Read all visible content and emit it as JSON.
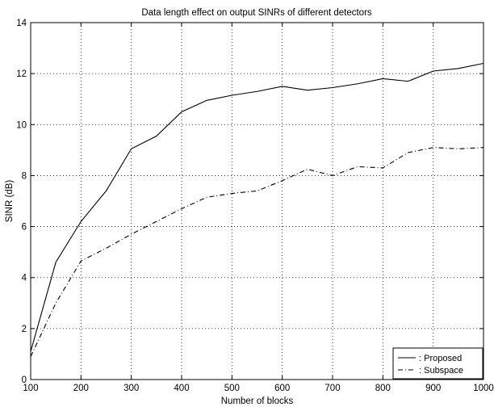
{
  "chart_data": {
    "type": "line",
    "title": "Data length effect on output SINRs of different detectors",
    "xlabel": "Number of blocks",
    "ylabel": "SINR (dB)",
    "xlim": [
      100,
      1000
    ],
    "ylim": [
      0,
      14
    ],
    "xticks": [
      100,
      200,
      300,
      400,
      500,
      600,
      700,
      800,
      900,
      1000
    ],
    "yticks": [
      0,
      2,
      4,
      6,
      8,
      10,
      12,
      14
    ],
    "grid": true,
    "legend_position": "bottom-right",
    "x": [
      100,
      150,
      200,
      250,
      300,
      350,
      400,
      450,
      500,
      550,
      600,
      650,
      700,
      750,
      800,
      850,
      900,
      950,
      1000
    ],
    "series": [
      {
        "name": ": Proposed",
        "line_style": "solid",
        "color": "#000000",
        "values": [
          1.1,
          4.6,
          6.2,
          7.4,
          9.05,
          9.55,
          10.5,
          10.95,
          11.15,
          11.3,
          11.5,
          11.35,
          11.45,
          11.6,
          11.8,
          11.7,
          12.1,
          12.2,
          12.4
        ]
      },
      {
        "name": ": Subspace",
        "line_style": "dashdot",
        "color": "#000000",
        "values": [
          0.9,
          3.0,
          4.65,
          5.15,
          5.7,
          6.2,
          6.7,
          7.15,
          7.3,
          7.4,
          7.8,
          8.25,
          8.0,
          8.35,
          8.3,
          8.9,
          9.1,
          9.05,
          9.1
        ]
      }
    ]
  }
}
